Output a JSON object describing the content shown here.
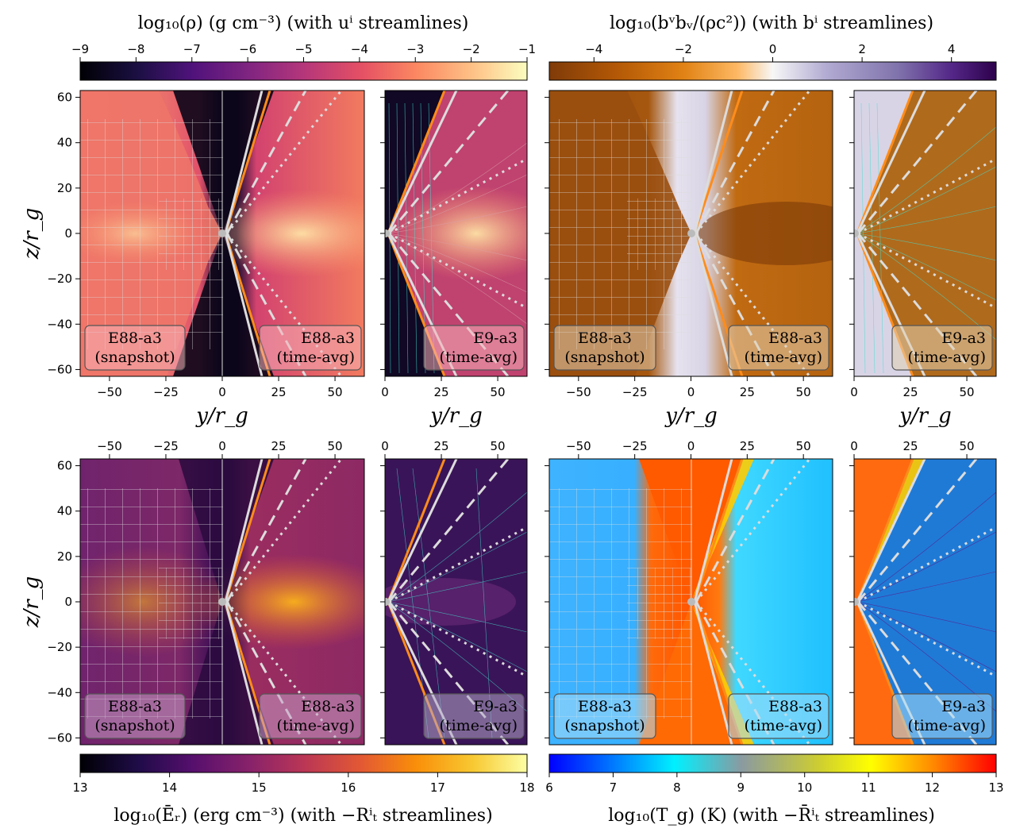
{
  "chart_data": [
    {
      "type": "heatmap",
      "title": "log10(ρ) (g cm^-3)   (with u^i streamlines)",
      "quantity": "log10(rho)",
      "colormap": "magma",
      "clim": [
        -9,
        -1
      ],
      "colorbar_ticks": [
        "-9",
        "-8",
        "-7",
        "-6",
        "-5",
        "-4",
        "-3",
        "-2",
        "-1"
      ],
      "xlabel": "y/r_g",
      "ylabel": "z/r_g",
      "xlim_wide": [
        -63,
        63
      ],
      "xlim_narrow": [
        0,
        63
      ],
      "ylim": [
        -63,
        63
      ],
      "labels": [
        "E88-a3 (snapshot)",
        "E88-a3 (time-avg)",
        "E9-a3 (time-avg)"
      ],
      "streamline_color": "#40e0d0"
    },
    {
      "type": "heatmap",
      "title": "log10(b^ν b_ν/(ρc^2))   (with b^i streamlines)",
      "quantity": "log10(bsq/rho c^2)",
      "colormap": "PuOr",
      "clim": [
        -5,
        5
      ],
      "colorbar_ticks": [
        "-4",
        "-2",
        "0",
        "2",
        "4"
      ],
      "xlabel": "y/r_g",
      "ylabel": "",
      "xlim_wide": [
        -63,
        63
      ],
      "xlim_narrow": [
        0,
        63
      ],
      "ylim": [
        -63,
        63
      ],
      "labels": [
        "E88-a3 (snapshot)",
        "E88-a3 (time-avg)",
        "E9-a3 (time-avg)"
      ],
      "streamline_color": "#40e0d0"
    },
    {
      "type": "heatmap",
      "title": "log10(Ē_r) (erg cm^-3)   (with −R^i_t streamlines)",
      "quantity": "log10(Er)",
      "colormap": "inferno",
      "clim": [
        13,
        18
      ],
      "colorbar_ticks": [
        "13",
        "14",
        "15",
        "16",
        "17",
        "18"
      ],
      "xlabel": "",
      "ylabel": "z/r_g",
      "xlim_wide": [
        -63,
        63
      ],
      "xlim_narrow": [
        0,
        63
      ],
      "ylim": [
        -63,
        63
      ],
      "labels": [
        "E88-a3 (snapshot)",
        "E88-a3 (time-avg)",
        "E9-a3 (time-avg)"
      ],
      "streamline_color": "#40e0d0"
    },
    {
      "type": "heatmap",
      "title": "log10(T_g) (K)   (with −R̄^i_t streamlines)",
      "quantity": "log10(Tg)",
      "colormap": "jet-like",
      "clim": [
        6,
        13
      ],
      "colorbar_ticks": [
        "6",
        "7",
        "8",
        "9",
        "10",
        "11",
        "12",
        "13"
      ],
      "xlabel": "",
      "ylabel": "",
      "xlim_wide": [
        -63,
        63
      ],
      "xlim_narrow": [
        0,
        63
      ],
      "ylim": [
        -63,
        63
      ],
      "labels": [
        "E88-a3 (snapshot)",
        "E88-a3 (time-avg)",
        "E9-a3 (time-avg)"
      ],
      "streamline_color": "#5a1a8a"
    }
  ],
  "text": {
    "cb_tl_title": "log₁₀(ρ) (g cm⁻³)   (with uⁱ streamlines)",
    "cb_tr_title": "log₁₀(bᵛbᵥ/(ρc²))   (with bⁱ streamlines)",
    "cb_bl_title": "log₁₀(Ēᵣ) (erg cm⁻³)   (with −Rⁱₜ streamlines)",
    "cb_br_title": "log₁₀(T_g) (K)   (with −R̄ⁱₜ streamlines)",
    "ylabel": "z/r_g",
    "xlabel": "y/r_g",
    "label_e88": "E88-a3",
    "label_e9": "E9-a3",
    "label_snapshot": "(snapshot)",
    "label_timeavg": "(time-avg)"
  },
  "ticks": {
    "cb_rho": [
      "−9",
      "−8",
      "−7",
      "−6",
      "−5",
      "−4",
      "−3",
      "−2",
      "−1"
    ],
    "cb_bsq": [
      "−4",
      "−2",
      "0",
      "2",
      "4"
    ],
    "cb_er": [
      "13",
      "14",
      "15",
      "16",
      "17",
      "18"
    ],
    "cb_tg": [
      "6",
      "7",
      "8",
      "9",
      "10",
      "11",
      "12",
      "13"
    ],
    "x_wide": [
      "−50",
      "−25",
      "0",
      "25",
      "50"
    ],
    "x_narrow": [
      "0",
      "25",
      "50"
    ],
    "y": [
      "60",
      "40",
      "20",
      "0",
      "−20",
      "−40",
      "−60"
    ]
  },
  "colors": {
    "grid": "#dcdcdc",
    "orange_line": "#ff8c1a",
    "dashed_line": "#dcdcdc",
    "label_box_edge": "#666666"
  }
}
